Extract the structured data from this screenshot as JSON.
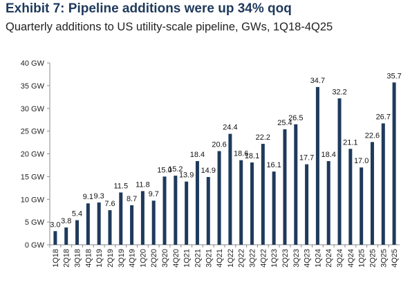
{
  "title": "Exhibit 7: Pipeline additions were up 34% qoq",
  "subtitle": "Quarterly additions to US utility-scale pipeline, GWs, 1Q18-4Q25",
  "colors": {
    "bar": "#1f3a5c",
    "axis": "#888888",
    "title": "#1f3a5c"
  },
  "chart_data": {
    "type": "bar",
    "title": "Exhibit 7: Pipeline additions were up 34% qoq",
    "subtitle": "Quarterly additions to US utility-scale pipeline, GWs, 1Q18-4Q25",
    "xlabel": "",
    "ylabel": "",
    "ylim": [
      0,
      40
    ],
    "yticks": [
      0,
      5,
      10,
      15,
      20,
      25,
      30,
      35,
      40
    ],
    "ytick_labels": [
      "0 GW",
      "5 GW",
      "10 GW",
      "15 GW",
      "20 GW",
      "25 GW",
      "30 GW",
      "35 GW",
      "40 GW"
    ],
    "grid": false,
    "categories": [
      "1Q18",
      "2Q18",
      "3Q18",
      "4Q18",
      "1Q19",
      "2Q19",
      "3Q19",
      "4Q19",
      "1Q20",
      "2Q20",
      "3Q20",
      "4Q20",
      "1Q21",
      "2Q21",
      "3Q21",
      "4Q21",
      "1Q22",
      "2Q22",
      "3Q22",
      "4Q22",
      "1Q23",
      "2Q23",
      "3Q23",
      "4Q23",
      "1Q24",
      "2Q24",
      "3Q24",
      "4Q24",
      "1Q25",
      "2Q25",
      "3Q25",
      "4Q25"
    ],
    "values": [
      3.0,
      3.8,
      5.4,
      9.1,
      9.3,
      7.6,
      11.5,
      8.7,
      11.8,
      9.7,
      15.0,
      15.2,
      13.9,
      18.4,
      14.9,
      20.6,
      24.4,
      18.6,
      18.1,
      22.2,
      16.1,
      25.4,
      26.5,
      17.7,
      34.7,
      18.4,
      32.2,
      21.1,
      17.0,
      22.6,
      26.7,
      35.7
    ],
    "data_labels": [
      "3.0",
      "3.8",
      "5.4",
      "9.1",
      "9.3",
      "7.6",
      "11.5",
      "8.7",
      "11.8",
      "9.7",
      "15.0",
      "15.2",
      "13.9",
      "18.4",
      "14.9",
      "20.6",
      "24.4",
      "18.6",
      "18.1",
      "22.2",
      "16.1",
      "25.4",
      "26.5",
      "17.7",
      "34.7",
      "18.4",
      "32.2",
      "21.1",
      "17.0",
      "22.6",
      "26.7",
      "35.7"
    ]
  }
}
